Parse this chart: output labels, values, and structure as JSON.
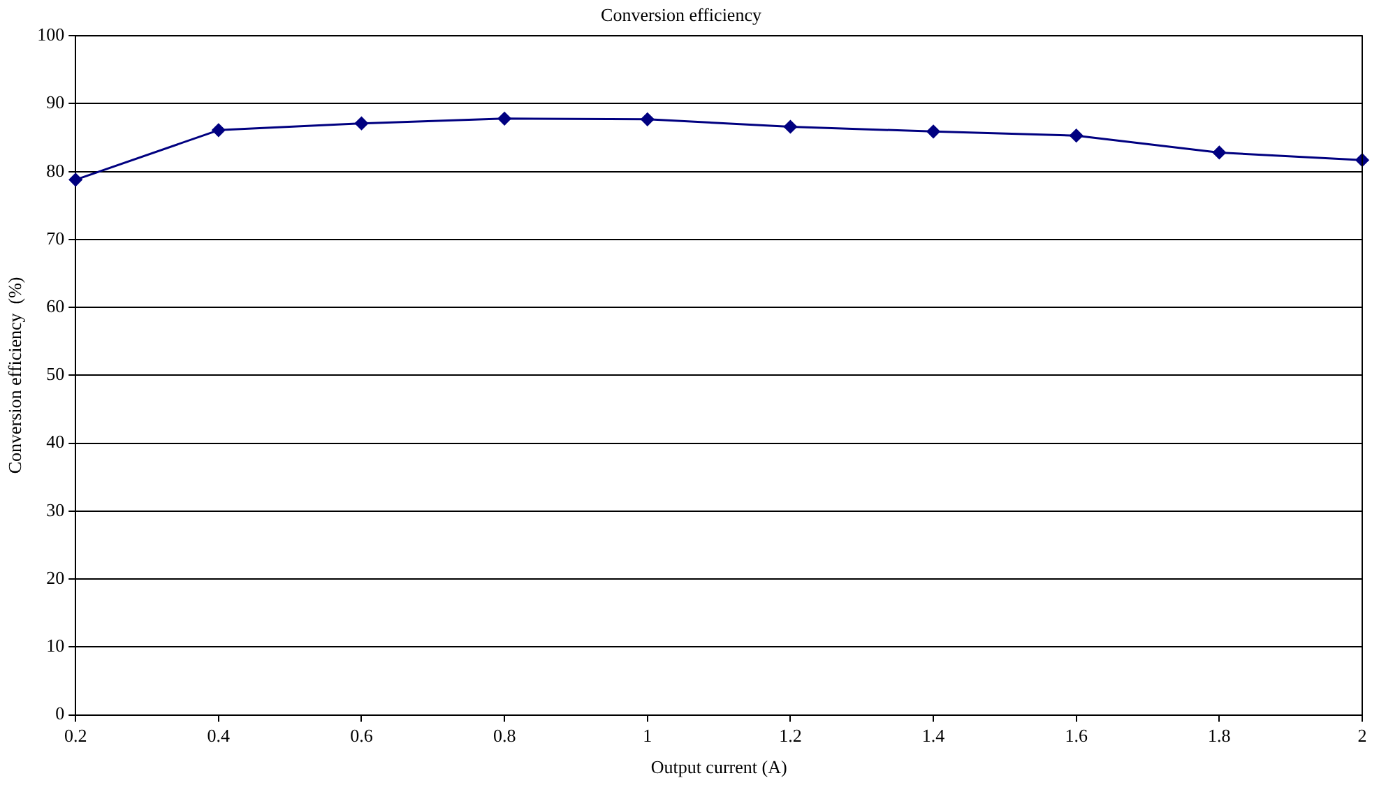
{
  "chart_data": {
    "type": "line",
    "title": "Conversion efficiency",
    "xlabel": "Output current (A)",
    "ylabel": "Conversion efficiency  (%)",
    "x": [
      0.2,
      0.4,
      0.6,
      0.8,
      1,
      1.2,
      1.4,
      1.6,
      1.8,
      2
    ],
    "series": [
      {
        "color": "#000080",
        "values": [
          78.8,
          86.1,
          87.1,
          87.8,
          87.7,
          86.6,
          85.9,
          85.3,
          82.8,
          81.7
        ]
      }
    ],
    "xlim": [
      0.2,
      2
    ],
    "xticks": [
      0.2,
      0.4,
      0.6,
      0.8,
      1,
      1.2,
      1.4,
      1.6,
      1.8,
      2
    ],
    "ylim": [
      0,
      100
    ],
    "yticks": [
      0,
      10,
      20,
      30,
      40,
      50,
      60,
      70,
      80,
      90,
      100
    ],
    "grid": "y",
    "legend": false,
    "marker": "diamond",
    "line_style": "solid"
  }
}
